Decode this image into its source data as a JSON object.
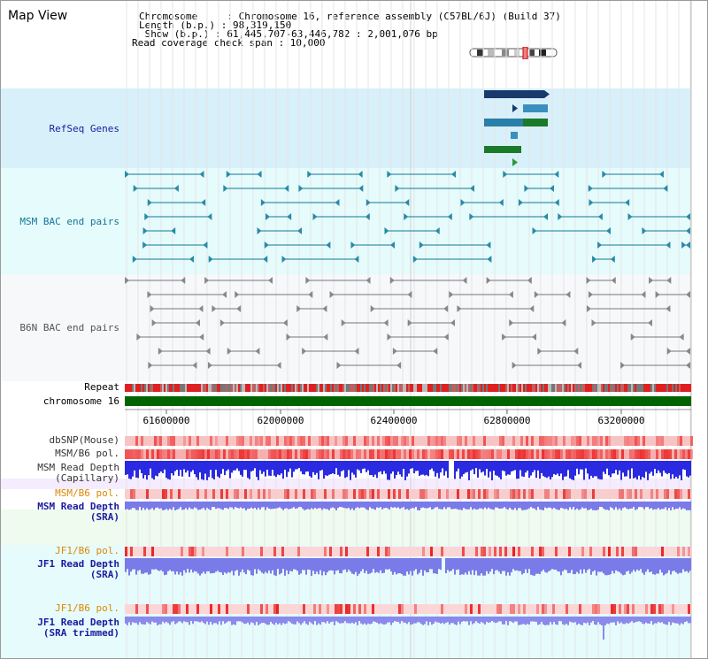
{
  "page": {
    "title": "Map View"
  },
  "info": {
    "chromosome_line": "Chromosome     : Chromosome 16, reference assembly (C57BL/6J) (Build 37)",
    "length_line": "Length (b.p.) : 98,319,150",
    "show_line": " Show (b.p.) : 61,445,707-63,446,782 : 2,001,076 bp",
    "coverage_line": "Read coverage check span : 10,000"
  },
  "tracks": {
    "refseq": "RefSeq Genes",
    "msm_bac": "MSM BAC end pairs",
    "b6n_bac": "B6N BAC end pairs",
    "repeat": "Repeat",
    "chromosome": "chromosome 16",
    "dbsnp": "dbSNP(Mouse)",
    "msm_b6_pol_a": "MSM/B6 pol.",
    "msm_depth_cap": "MSM Read Depth\n(Capillary)",
    "msm_b6_pol_b": "MSM/B6 pol.",
    "msm_depth_sra": "MSM Read Depth\n(SRA)",
    "jf1_b6_pol_a": "JF1/B6 pol.",
    "jf1_depth_sra": "JF1 Read Depth\n(SRA)",
    "jf1_b6_pol_b": "JF1/B6 pol.",
    "jf1_depth_trim": "JF1 Read Depth\n(SRA trimmed)"
  },
  "axis": {
    "ticks": [
      "61600000",
      "62000000",
      "62400000",
      "62800000",
      "63200000"
    ]
  },
  "colors": {
    "refseq_label": "#1a1aa0",
    "msm_label": "#117799",
    "b6n_label": "#555555",
    "pol_label": "#dd8800",
    "depth_label": "#1a1aa0",
    "chromosome_bar": "#006400",
    "refseq_bg": "#d8f0fa",
    "msm_bg": "#e6fbfb",
    "b6n_bg": "#f6f8fa"
  }
}
